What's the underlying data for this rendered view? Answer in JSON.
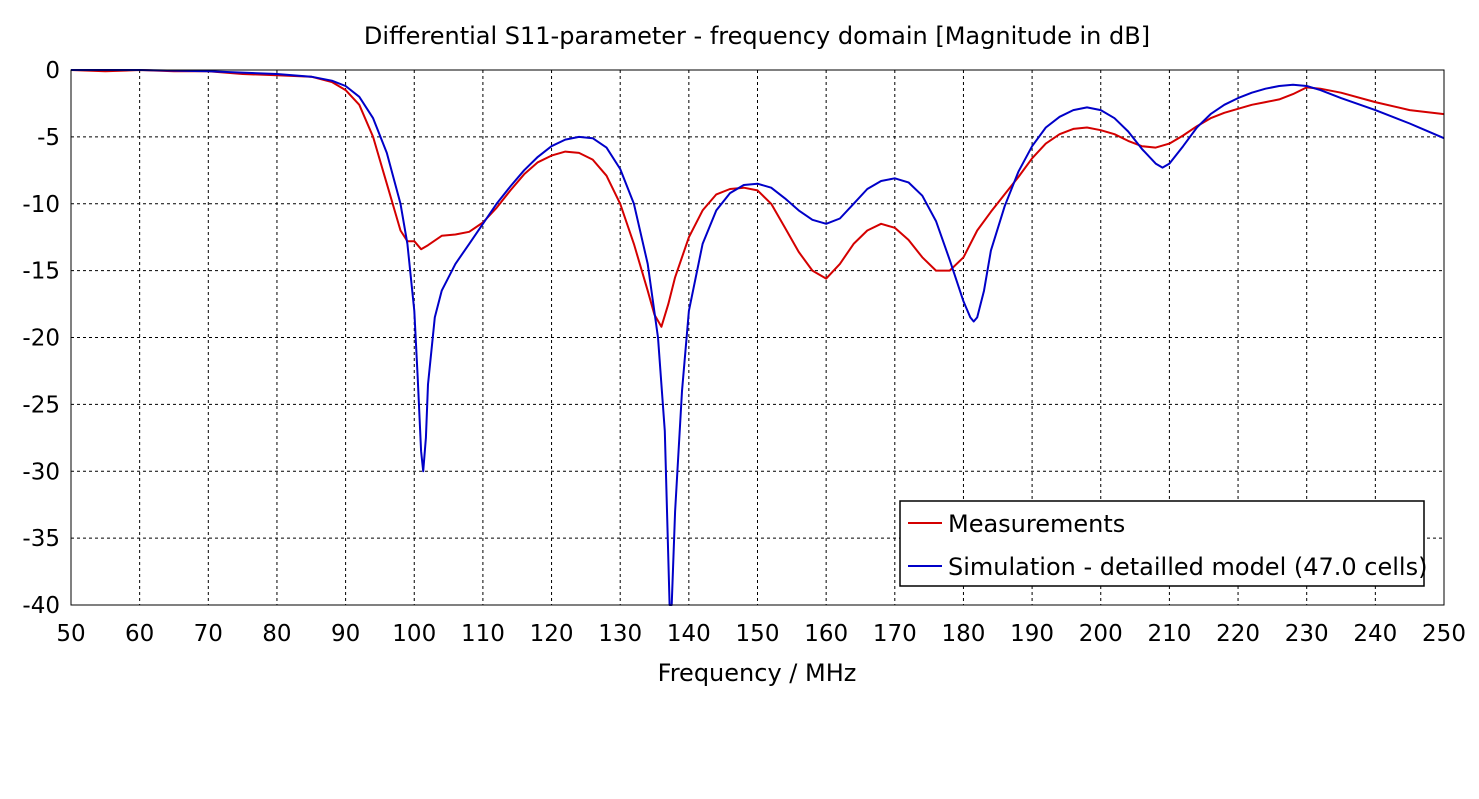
{
  "chart_data": {
    "type": "line",
    "title": "Differential S11-parameter - frequency domain [Magnitude in dB]",
    "xlabel": "Frequency / MHz",
    "ylabel": "",
    "xlim": [
      50,
      250
    ],
    "ylim": [
      -40,
      0
    ],
    "xticks": [
      50,
      60,
      70,
      80,
      90,
      100,
      110,
      120,
      130,
      140,
      150,
      160,
      170,
      180,
      190,
      200,
      210,
      220,
      230,
      240,
      250
    ],
    "yticks": [
      0,
      -5,
      -10,
      -15,
      -20,
      -25,
      -30,
      -35,
      -40
    ],
    "grid": true,
    "legend_position": "bottom-right",
    "series": [
      {
        "name": "Measurements",
        "color": "#d40000",
        "points": [
          [
            50,
            0
          ],
          [
            55,
            -0.1
          ],
          [
            60,
            0
          ],
          [
            65,
            -0.1
          ],
          [
            70,
            -0.1
          ],
          [
            75,
            -0.3
          ],
          [
            80,
            -0.4
          ],
          [
            85,
            -0.5
          ],
          [
            88,
            -0.9
          ],
          [
            90,
            -1.5
          ],
          [
            92,
            -2.6
          ],
          [
            94,
            -5
          ],
          [
            96,
            -8.5
          ],
          [
            98,
            -12
          ],
          [
            99,
            -12.8
          ],
          [
            100,
            -12.8
          ],
          [
            101,
            -13.4
          ],
          [
            102,
            -13.1
          ],
          [
            104,
            -12.4
          ],
          [
            106,
            -12.3
          ],
          [
            108,
            -12.1
          ],
          [
            110,
            -11.4
          ],
          [
            112,
            -10.3
          ],
          [
            114,
            -9
          ],
          [
            116,
            -7.8
          ],
          [
            118,
            -6.9
          ],
          [
            120,
            -6.4
          ],
          [
            122,
            -6.1
          ],
          [
            124,
            -6.2
          ],
          [
            126,
            -6.7
          ],
          [
            128,
            -7.9
          ],
          [
            130,
            -10
          ],
          [
            132,
            -13
          ],
          [
            134,
            -16.5
          ],
          [
            135,
            -18.3
          ],
          [
            136,
            -19.2
          ],
          [
            137,
            -17.5
          ],
          [
            138,
            -15.5
          ],
          [
            140,
            -12.5
          ],
          [
            142,
            -10.5
          ],
          [
            144,
            -9.3
          ],
          [
            146,
            -8.9
          ],
          [
            148,
            -8.8
          ],
          [
            150,
            -9
          ],
          [
            152,
            -10
          ],
          [
            154,
            -11.8
          ],
          [
            156,
            -13.6
          ],
          [
            158,
            -15
          ],
          [
            160,
            -15.6
          ],
          [
            162,
            -14.5
          ],
          [
            164,
            -13
          ],
          [
            166,
            -12
          ],
          [
            168,
            -11.5
          ],
          [
            170,
            -11.8
          ],
          [
            172,
            -12.7
          ],
          [
            174,
            -14
          ],
          [
            176,
            -15
          ],
          [
            178,
            -15
          ],
          [
            180,
            -14
          ],
          [
            182,
            -12
          ],
          [
            184,
            -10.6
          ],
          [
            186,
            -9.3
          ],
          [
            188,
            -8
          ],
          [
            190,
            -6.6
          ],
          [
            192,
            -5.5
          ],
          [
            194,
            -4.8
          ],
          [
            196,
            -4.4
          ],
          [
            198,
            -4.3
          ],
          [
            200,
            -4.5
          ],
          [
            202,
            -4.8
          ],
          [
            204,
            -5.3
          ],
          [
            206,
            -5.7
          ],
          [
            208,
            -5.8
          ],
          [
            210,
            -5.5
          ],
          [
            212,
            -4.9
          ],
          [
            214,
            -4.2
          ],
          [
            216,
            -3.6
          ],
          [
            218,
            -3.2
          ],
          [
            220,
            -2.9
          ],
          [
            222,
            -2.6
          ],
          [
            224,
            -2.4
          ],
          [
            226,
            -2.2
          ],
          [
            228,
            -1.8
          ],
          [
            230,
            -1.3
          ],
          [
            232,
            -1.4
          ],
          [
            235,
            -1.7
          ],
          [
            240,
            -2.4
          ],
          [
            245,
            -3
          ],
          [
            250,
            -3.3
          ]
        ]
      },
      {
        "name": "Simulation - detailled model (47.0 cells)",
        "color": "#0000c8",
        "points": [
          [
            50,
            0
          ],
          [
            60,
            0
          ],
          [
            70,
            -0.1
          ],
          [
            80,
            -0.3
          ],
          [
            85,
            -0.5
          ],
          [
            88,
            -0.8
          ],
          [
            90,
            -1.2
          ],
          [
            92,
            -2
          ],
          [
            94,
            -3.6
          ],
          [
            96,
            -6.2
          ],
          [
            98,
            -10
          ],
          [
            99,
            -13
          ],
          [
            100,
            -18
          ],
          [
            100.5,
            -23
          ],
          [
            101,
            -28.5
          ],
          [
            101.3,
            -30
          ],
          [
            101.7,
            -27.5
          ],
          [
            102,
            -23.5
          ],
          [
            103,
            -18.5
          ],
          [
            104,
            -16.5
          ],
          [
            106,
            -14.5
          ],
          [
            108,
            -13
          ],
          [
            110,
            -11.5
          ],
          [
            112,
            -10
          ],
          [
            114,
            -8.7
          ],
          [
            116,
            -7.5
          ],
          [
            118,
            -6.5
          ],
          [
            120,
            -5.7
          ],
          [
            122,
            -5.2
          ],
          [
            124,
            -5
          ],
          [
            126,
            -5.1
          ],
          [
            128,
            -5.8
          ],
          [
            130,
            -7.4
          ],
          [
            132,
            -10
          ],
          [
            134,
            -14.5
          ],
          [
            135.5,
            -20
          ],
          [
            136.5,
            -27
          ],
          [
            137.2,
            -40
          ],
          [
            137.5,
            -40
          ],
          [
            138,
            -33
          ],
          [
            139,
            -24
          ],
          [
            140,
            -18
          ],
          [
            142,
            -13
          ],
          [
            144,
            -10.5
          ],
          [
            146,
            -9.2
          ],
          [
            148,
            -8.6
          ],
          [
            150,
            -8.5
          ],
          [
            152,
            -8.8
          ],
          [
            154,
            -9.6
          ],
          [
            156,
            -10.5
          ],
          [
            158,
            -11.2
          ],
          [
            160,
            -11.5
          ],
          [
            162,
            -11.1
          ],
          [
            164,
            -10
          ],
          [
            166,
            -8.9
          ],
          [
            168,
            -8.3
          ],
          [
            170,
            -8.1
          ],
          [
            172,
            -8.4
          ],
          [
            174,
            -9.4
          ],
          [
            176,
            -11.3
          ],
          [
            178,
            -14.2
          ],
          [
            180,
            -17.3
          ],
          [
            181,
            -18.5
          ],
          [
            181.5,
            -18.8
          ],
          [
            182,
            -18.5
          ],
          [
            183,
            -16.5
          ],
          [
            184,
            -13.5
          ],
          [
            186,
            -10.2
          ],
          [
            188,
            -7.6
          ],
          [
            190,
            -5.7
          ],
          [
            192,
            -4.3
          ],
          [
            194,
            -3.5
          ],
          [
            196,
            -3
          ],
          [
            198,
            -2.8
          ],
          [
            200,
            -3
          ],
          [
            202,
            -3.6
          ],
          [
            204,
            -4.6
          ],
          [
            206,
            -5.9
          ],
          [
            208,
            -7
          ],
          [
            209,
            -7.3
          ],
          [
            210,
            -7
          ],
          [
            212,
            -5.7
          ],
          [
            214,
            -4.3
          ],
          [
            216,
            -3.3
          ],
          [
            218,
            -2.6
          ],
          [
            220,
            -2.1
          ],
          [
            222,
            -1.7
          ],
          [
            224,
            -1.4
          ],
          [
            226,
            -1.2
          ],
          [
            228,
            -1.1
          ],
          [
            230,
            -1.2
          ],
          [
            232,
            -1.5
          ],
          [
            235,
            -2.1
          ],
          [
            240,
            -3
          ],
          [
            245,
            -4
          ],
          [
            250,
            -5.1
          ]
        ]
      }
    ]
  }
}
